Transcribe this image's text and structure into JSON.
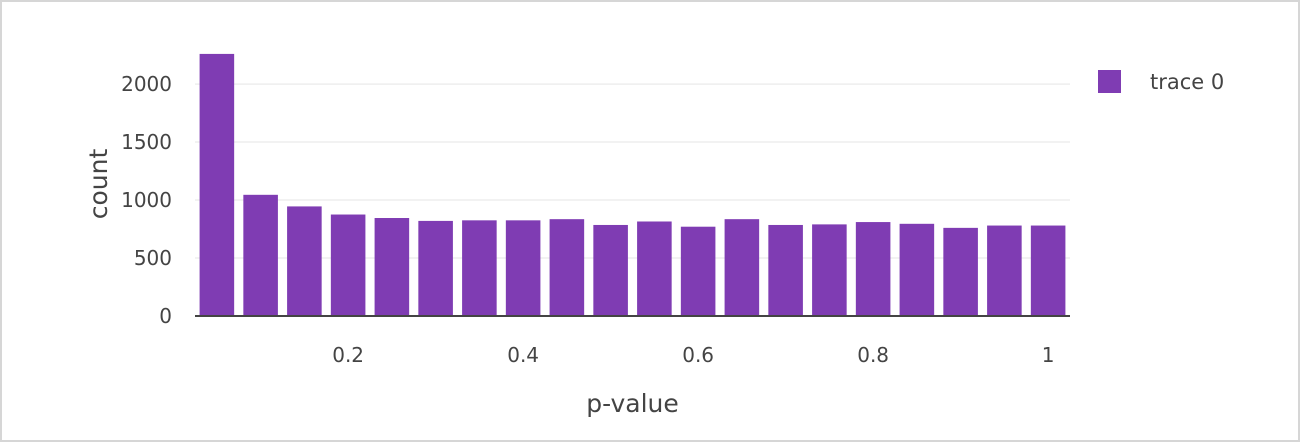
{
  "chart_data": {
    "type": "bar",
    "x": [
      0.05,
      0.1,
      0.15,
      0.2,
      0.25,
      0.3,
      0.35,
      0.4,
      0.45,
      0.5,
      0.55,
      0.6,
      0.65,
      0.7,
      0.75,
      0.8,
      0.85,
      0.9,
      0.95,
      1.0
    ],
    "series": [
      {
        "name": "trace 0",
        "values": [
          2260,
          1045,
          945,
          875,
          845,
          820,
          825,
          825,
          835,
          785,
          815,
          770,
          835,
          785,
          790,
          810,
          795,
          760,
          780,
          780
        ]
      }
    ],
    "xlabel": "p-value",
    "ylabel": "count",
    "xticks": [
      "0.2",
      "0.4",
      "0.6",
      "0.8",
      "1"
    ],
    "yticks": [
      "0",
      "500",
      "1000",
      "1500",
      "2000"
    ],
    "ylim": [
      0,
      2380
    ],
    "grid": true,
    "legend": "top-right",
    "bar_color": "#7f3cb3"
  }
}
